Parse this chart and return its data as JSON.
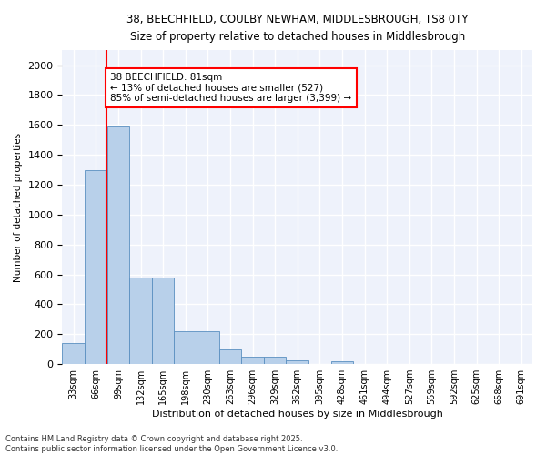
{
  "title_line1": "38, BEECHFIELD, COULBY NEWHAM, MIDDLESBROUGH, TS8 0TY",
  "title_line2": "Size of property relative to detached houses in Middlesbrough",
  "xlabel": "Distribution of detached houses by size in Middlesbrough",
  "ylabel": "Number of detached properties",
  "categories": [
    "33sqm",
    "66sqm",
    "99sqm",
    "132sqm",
    "165sqm",
    "198sqm",
    "230sqm",
    "263sqm",
    "296sqm",
    "329sqm",
    "362sqm",
    "395sqm",
    "428sqm",
    "461sqm",
    "494sqm",
    "527sqm",
    "559sqm",
    "592sqm",
    "625sqm",
    "658sqm",
    "691sqm"
  ],
  "values": [
    140,
    1295,
    1590,
    580,
    580,
    220,
    220,
    100,
    48,
    48,
    25,
    0,
    18,
    0,
    0,
    0,
    0,
    0,
    0,
    0,
    0
  ],
  "bar_color": "#b8d0ea",
  "bar_edge_color": "#5a8fc0",
  "vline_x": 1.47,
  "vline_color": "red",
  "annotation_text": "38 BEECHFIELD: 81sqm\n← 13% of detached houses are smaller (527)\n85% of semi-detached houses are larger (3,399) →",
  "ylim": [
    0,
    2100
  ],
  "yticks": [
    0,
    200,
    400,
    600,
    800,
    1000,
    1200,
    1400,
    1600,
    1800,
    2000
  ],
  "background_color": "#eef2fb",
  "grid_color": "white",
  "footer_line1": "Contains HM Land Registry data © Crown copyright and database right 2025.",
  "footer_line2": "Contains public sector information licensed under the Open Government Licence v3.0."
}
